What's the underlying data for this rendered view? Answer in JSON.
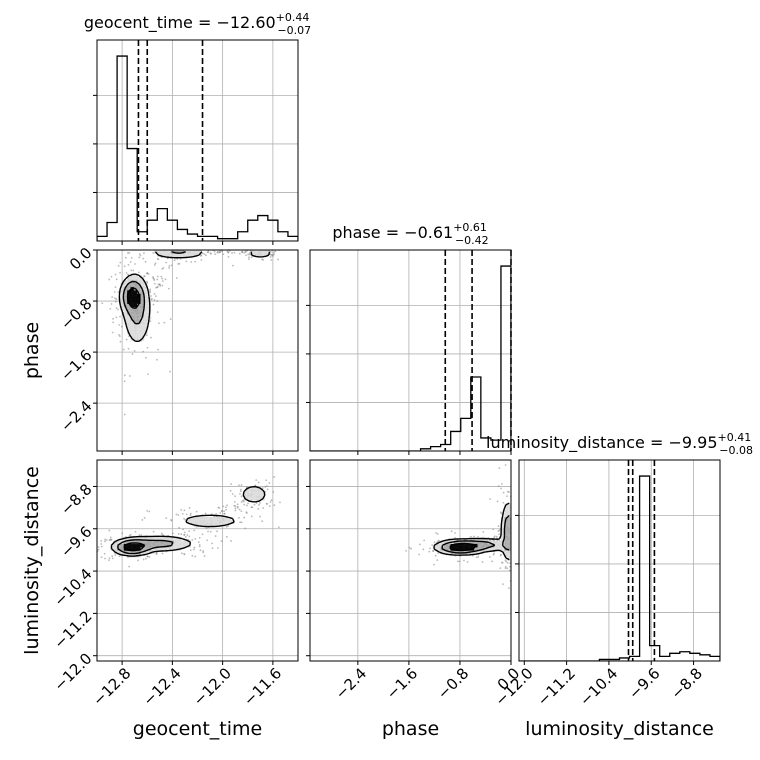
{
  "chart_data": {
    "type": "corner",
    "parameters": [
      {
        "name": "geocent_time",
        "axis_label": "geocent_time",
        "title_prefix": "geocent_time = ",
        "median": "−12.60",
        "plus": "+0.44",
        "minus": "−0.07",
        "range": [
          -13.0,
          -11.4
        ],
        "ticks": [
          -12.8,
          -12.4,
          -12.0,
          -11.6
        ],
        "tick_labels": [
          "−12.8",
          "−12.4",
          "−12.0",
          "−11.6"
        ],
        "quantiles": [
          -12.67,
          -12.6,
          -12.16
        ],
        "hist_edges_start": -13.0,
        "hist_bin_width": 0.08,
        "hist_counts": [
          2,
          8,
          80,
          40,
          4,
          9,
          14,
          9,
          5,
          3,
          2,
          2,
          1,
          1,
          4,
          9,
          11,
          9,
          4,
          2
        ]
      },
      {
        "name": "phase",
        "axis_label": "phase",
        "title_prefix": "phase = ",
        "median": "−0.61",
        "plus": "+0.61",
        "minus": "−0.42",
        "range": [
          -3.15,
          0.0
        ],
        "ticks": [
          -2.4,
          -1.6,
          -0.8,
          0.0
        ],
        "tick_labels": [
          "−2.4",
          "−1.6",
          "−0.8",
          "0.0"
        ],
        "quantiles": [
          -1.03,
          -0.61,
          0.0
        ],
        "hist_edges_start": -3.15,
        "hist_bin_width": 0.1575,
        "hist_counts": [
          0,
          0,
          0,
          0,
          0,
          0,
          0,
          0,
          0,
          0,
          0,
          1,
          2,
          3,
          9,
          15,
          34,
          6,
          5,
          85
        ]
      },
      {
        "name": "luminosity_distance",
        "axis_label": "luminosity_distance",
        "title_prefix": "luminosity_distance = ",
        "median": "−9.95",
        "plus": "+0.41",
        "minus": "−0.08",
        "range": [
          -12.1,
          -8.3
        ],
        "ticks": [
          -12.0,
          -11.2,
          -10.4,
          -9.6,
          -8.8
        ],
        "tick_labels": [
          "−12.0",
          "−11.2",
          "−10.4",
          "−9.6",
          "−8.8"
        ],
        "quantiles": [
          -10.03,
          -9.95,
          -9.54
        ],
        "hist_edges_start": -12.1,
        "hist_bin_width": 0.19,
        "hist_counts": [
          0,
          0,
          0,
          0,
          0,
          0,
          0,
          0,
          1,
          1,
          2,
          3,
          120,
          10,
          3,
          5,
          6,
          5,
          4,
          3
        ]
      }
    ],
    "contours": [
      {
        "x_param": "geocent_time",
        "y_param": "phase",
        "peaks": [
          {
            "x": -12.72,
            "y": -0.72,
            "sx": 0.05,
            "sy": 0.15,
            "w": 1.0
          },
          {
            "x": -12.68,
            "y": -0.95,
            "sx": 0.06,
            "sy": 0.3,
            "w": 0.6
          },
          {
            "x": -12.35,
            "y": -0.04,
            "sx": 0.12,
            "sy": 0.05,
            "w": 0.55
          },
          {
            "x": -11.7,
            "y": -0.05,
            "sx": 0.06,
            "sy": 0.04,
            "w": 0.4
          }
        ]
      },
      {
        "x_param": "geocent_time",
        "y_param": "luminosity_distance",
        "peaks": [
          {
            "x": -12.72,
            "y": -9.95,
            "sx": 0.08,
            "sy": 0.08,
            "w": 1.0
          },
          {
            "x": -12.5,
            "y": -9.88,
            "sx": 0.15,
            "sy": 0.08,
            "w": 0.5
          },
          {
            "x": -12.1,
            "y": -9.45,
            "sx": 0.15,
            "sy": 0.08,
            "w": 0.3
          },
          {
            "x": -11.75,
            "y": -8.95,
            "sx": 0.06,
            "sy": 0.1,
            "w": 0.35
          }
        ]
      },
      {
        "x_param": "phase",
        "y_param": "luminosity_distance",
        "peaks": [
          {
            "x": -0.8,
            "y": -9.95,
            "sx": 0.2,
            "sy": 0.07,
            "w": 1.0
          },
          {
            "x": -0.4,
            "y": -9.9,
            "sx": 0.25,
            "sy": 0.07,
            "w": 0.4
          },
          {
            "x": -0.04,
            "y": -9.65,
            "sx": 0.06,
            "sy": 0.3,
            "w": 0.6
          }
        ]
      }
    ],
    "colors": {
      "line": "#000000",
      "grid": "#b0b0b0",
      "scatter": "#808080",
      "fill_light": "#d9d9d9",
      "fill_mid": "#a6a6a6",
      "fill_dark": "#000000"
    }
  }
}
